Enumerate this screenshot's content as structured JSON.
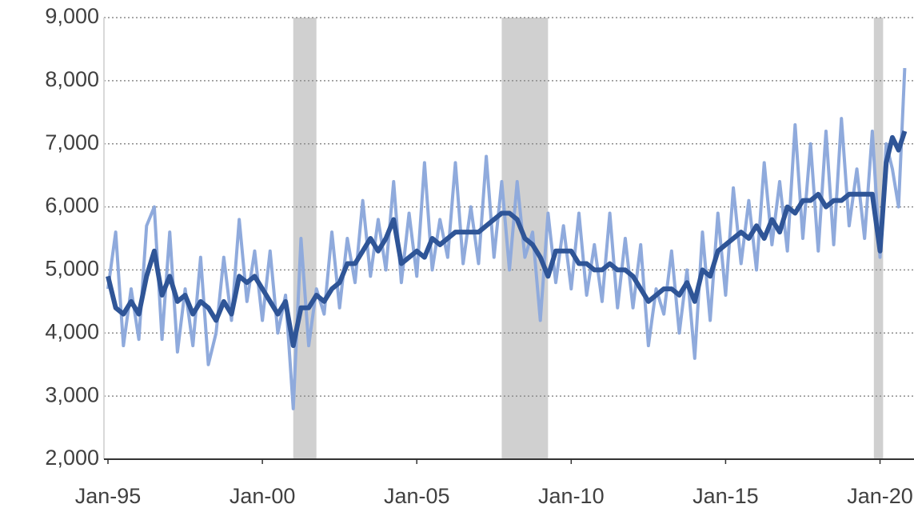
{
  "chart_data": {
    "type": "line",
    "x": [
      1995,
      1995.25,
      1995.5,
      1995.75,
      1996,
      1996.25,
      1996.5,
      1996.75,
      1997,
      1997.25,
      1997.5,
      1997.75,
      1998,
      1998.25,
      1998.5,
      1998.75,
      1999,
      1999.25,
      1999.5,
      1999.75,
      2000,
      2000.25,
      2000.5,
      2000.75,
      2001,
      2001.25,
      2001.5,
      2001.75,
      2002,
      2002.25,
      2002.5,
      2002.75,
      2003,
      2003.25,
      2003.5,
      2003.75,
      2004,
      2004.25,
      2004.5,
      2004.75,
      2005,
      2005.25,
      2005.5,
      2005.75,
      2006,
      2006.25,
      2006.5,
      2006.75,
      2007,
      2007.25,
      2007.5,
      2007.75,
      2008,
      2008.25,
      2008.5,
      2008.75,
      2009,
      2009.25,
      2009.5,
      2009.75,
      2010,
      2010.25,
      2010.5,
      2010.75,
      2011,
      2011.25,
      2011.5,
      2011.75,
      2012,
      2012.25,
      2012.5,
      2012.75,
      2013,
      2013.25,
      2013.5,
      2013.75,
      2014,
      2014.25,
      2014.5,
      2014.75,
      2015,
      2015.25,
      2015.5,
      2015.75,
      2016,
      2016.25,
      2016.5,
      2016.75,
      2017,
      2017.25,
      2017.5,
      2017.75,
      2018,
      2018.25,
      2018.5,
      2018.75,
      2019,
      2019.25,
      2019.5,
      2019.75,
      2020,
      2020.2,
      2020.4,
      2020.6,
      2020.8
    ],
    "series": [
      {
        "color": "#8faadc",
        "values": [
          4700,
          5600,
          3800,
          4700,
          3900,
          5700,
          6000,
          3900,
          5600,
          3700,
          4700,
          3800,
          5200,
          3500,
          4000,
          5200,
          4200,
          5800,
          4500,
          5300,
          4200,
          5300,
          4000,
          4600,
          2800,
          5500,
          3800,
          4700,
          4300,
          5600,
          4400,
          5500,
          4800,
          6100,
          4900,
          5800,
          5000,
          6400,
          4800,
          5900,
          4900,
          6700,
          5000,
          5800,
          5200,
          6700,
          5100,
          6000,
          5100,
          6800,
          5200,
          6400,
          5000,
          6400,
          5200,
          5600,
          4200,
          5900,
          4800,
          5700,
          4700,
          5900,
          4600,
          5400,
          4500,
          5900,
          4400,
          5500,
          4400,
          5400,
          3800,
          4700,
          4300,
          5300,
          4000,
          5000,
          3600,
          5600,
          4200,
          5900,
          4600,
          6300,
          5100,
          6100,
          5000,
          6700,
          5400,
          6400,
          5300,
          7300,
          5500,
          7000,
          5300,
          7200,
          5400,
          7400,
          5700,
          6600,
          5500,
          7200,
          5200,
          7000,
          6600,
          6000,
          8200
        ]
      },
      {
        "color": "#2f5597",
        "values": [
          4900,
          4400,
          4300,
          4500,
          4300,
          4900,
          5300,
          4600,
          4900,
          4500,
          4600,
          4300,
          4500,
          4400,
          4200,
          4500,
          4300,
          4900,
          4800,
          4900,
          4700,
          4500,
          4300,
          4500,
          3800,
          4400,
          4400,
          4600,
          4500,
          4700,
          4800,
          5100,
          5100,
          5300,
          5500,
          5300,
          5500,
          5800,
          5100,
          5200,
          5300,
          5200,
          5500,
          5400,
          5500,
          5600,
          5600,
          5600,
          5600,
          5700,
          5800,
          5900,
          5900,
          5800,
          5500,
          5400,
          5200,
          4900,
          5300,
          5300,
          5300,
          5100,
          5100,
          5000,
          5000,
          5100,
          5000,
          5000,
          4900,
          4700,
          4500,
          4600,
          4700,
          4700,
          4600,
          4800,
          4500,
          5000,
          4900,
          5300,
          5400,
          5500,
          5600,
          5500,
          5700,
          5500,
          5800,
          5600,
          6000,
          5900,
          6100,
          6100,
          6200,
          6000,
          6100,
          6100,
          6200,
          6200,
          6200,
          6200,
          5300,
          6700,
          7100,
          6900,
          7200
        ]
      }
    ],
    "shaded_ranges": [
      [
        2001.0,
        2001.75
      ],
      [
        2007.75,
        2009.25
      ],
      [
        2019.8,
        2020.1
      ]
    ],
    "xlim": [
      1994.87,
      2021.1
    ],
    "xticks": [
      {
        "value": 1995,
        "label": "Jan-95"
      },
      {
        "value": 2000,
        "label": "Jan-00"
      },
      {
        "value": 2005,
        "label": "Jan-05"
      },
      {
        "value": 2010,
        "label": "Jan-10"
      },
      {
        "value": 2015,
        "label": "Jan-15"
      },
      {
        "value": 2020,
        "label": "Jan-20"
      }
    ],
    "ylim": [
      2000,
      9000
    ],
    "yticks": [
      {
        "value": 2000,
        "label": "2,000"
      },
      {
        "value": 3000,
        "label": "3,000"
      },
      {
        "value": 4000,
        "label": "4,000"
      },
      {
        "value": 5000,
        "label": "5,000"
      },
      {
        "value": 6000,
        "label": "6,000"
      },
      {
        "value": 7000,
        "label": "7,000"
      },
      {
        "value": 8000,
        "label": "8,000"
      },
      {
        "value": 9000,
        "label": "9,000"
      }
    ],
    "grid": true
  }
}
